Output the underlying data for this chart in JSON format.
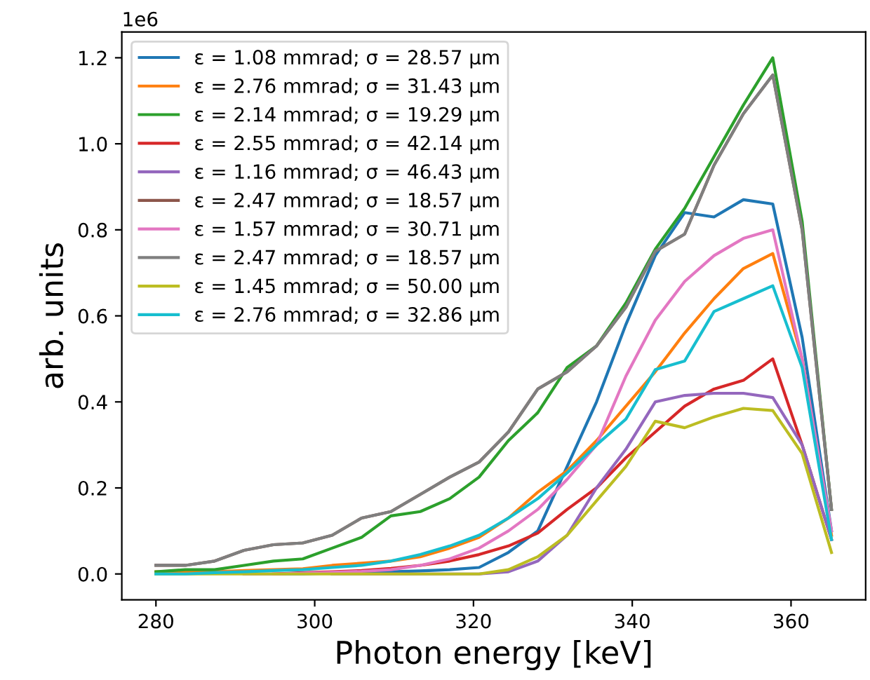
{
  "chart_data": {
    "type": "line",
    "xlabel": "Photon energy [keV]",
    "ylabel": "arb. units",
    "annotations": [
      "1e6"
    ],
    "x": [
      280,
      283.7,
      287.4,
      291.1,
      294.8,
      298.5,
      302.2,
      305.9,
      309.6,
      313.3,
      317,
      320.7,
      324.4,
      328.1,
      331.8,
      335.5,
      339.2,
      342.9,
      346.6,
      350.3,
      354,
      357.7,
      361.4,
      365.1
    ],
    "series": [
      {
        "name": "ε = 1.08 mmrad; σ = 28.57 μm",
        "color": "#1f77b4",
        "values": [
          null,
          null,
          null,
          0,
          0,
          0,
          0.002,
          0.003,
          0.005,
          0.007,
          0.01,
          0.015,
          0.05,
          0.1,
          0.25,
          0.4,
          0.58,
          0.74,
          0.84,
          0.83,
          0.87,
          0.86,
          0.55,
          0.1
        ]
      },
      {
        "name": "ε = 2.76 mmrad; σ = 31.43 μm",
        "color": "#ff7f0e",
        "values": [
          0.005,
          0.005,
          0.005,
          0.008,
          0.01,
          0.012,
          0.02,
          0.025,
          0.03,
          0.04,
          0.06,
          0.085,
          0.13,
          0.19,
          0.24,
          0.31,
          0.39,
          0.47,
          0.56,
          0.64,
          0.71,
          0.745,
          0.5,
          0.09
        ]
      },
      {
        "name": "ε = 2.14 mmrad; σ = 19.29 μm",
        "color": "#2ca02c",
        "values": [
          0.005,
          0.01,
          0.01,
          0.02,
          0.03,
          0.035,
          0.06,
          0.085,
          0.135,
          0.145,
          0.175,
          0.225,
          0.31,
          0.375,
          0.48,
          0.53,
          0.63,
          0.755,
          0.85,
          0.97,
          1.09,
          1.2,
          0.82,
          0.15
        ]
      },
      {
        "name": "ε = 2.55 mmrad; σ = 42.14 μm",
        "color": "#d62728",
        "values": [
          null,
          null,
          null,
          null,
          0,
          0.003,
          0.005,
          0.008,
          0.013,
          0.02,
          0.03,
          0.045,
          0.065,
          0.095,
          0.15,
          0.2,
          0.27,
          0.33,
          0.39,
          0.43,
          0.45,
          0.5,
          0.3,
          0.08
        ]
      },
      {
        "name": "ε = 1.16 mmrad; σ = 46.43 μm",
        "color": "#9467bd",
        "values": [
          null,
          null,
          null,
          null,
          null,
          null,
          0,
          0,
          0,
          0,
          0,
          0,
          0.005,
          0.03,
          0.09,
          0.2,
          0.29,
          0.4,
          0.415,
          0.42,
          0.42,
          0.41,
          0.3,
          0.08
        ]
      },
      {
        "name": "ε = 2.47 mmrad; σ = 18.57 μm",
        "color": "#8c564b",
        "values": [
          0.02,
          0.02,
          0.03,
          0.055,
          0.068,
          0.072,
          0.09,
          0.13,
          0.145,
          0.185,
          0.225,
          0.26,
          0.33,
          0.43,
          0.47,
          0.53,
          0.62,
          0.75,
          0.79,
          0.95,
          1.07,
          1.16,
          0.8,
          0.15
        ]
      },
      {
        "name": "ε = 1.57 mmrad; σ = 30.71 μm",
        "color": "#e377c2",
        "values": [
          null,
          null,
          null,
          0,
          0,
          0.002,
          0.004,
          0.006,
          0.01,
          0.02,
          0.035,
          0.06,
          0.1,
          0.15,
          0.22,
          0.3,
          0.46,
          0.59,
          0.68,
          0.74,
          0.78,
          0.8,
          0.5,
          0.1
        ]
      },
      {
        "name": "ε = 2.47 mmrad; σ = 18.57 μm",
        "color": "#7f7f7f",
        "values": [
          0.02,
          0.02,
          0.03,
          0.055,
          0.068,
          0.072,
          0.09,
          0.13,
          0.145,
          0.185,
          0.225,
          0.26,
          0.33,
          0.43,
          0.47,
          0.53,
          0.62,
          0.75,
          0.79,
          0.95,
          1.07,
          1.16,
          0.8,
          0.15
        ]
      },
      {
        "name": "ε = 1.45 mmrad; σ = 50.00 μm",
        "color": "#bcbd22",
        "values": [
          0,
          0,
          0,
          0,
          0,
          0,
          0,
          0,
          0,
          0,
          0,
          0,
          0.01,
          0.04,
          0.09,
          0.17,
          0.25,
          0.355,
          0.34,
          0.365,
          0.385,
          0.38,
          0.28,
          0.05
        ]
      },
      {
        "name": "ε = 2.76 mmrad; σ = 32.86 μm",
        "color": "#17becf",
        "values": [
          0,
          0,
          0.003,
          0.005,
          0.008,
          0.01,
          0.015,
          0.02,
          0.03,
          0.045,
          0.065,
          0.09,
          0.13,
          0.175,
          0.235,
          0.3,
          0.36,
          0.475,
          0.495,
          0.61,
          0.64,
          0.67,
          0.48,
          0.08
        ]
      }
    ],
    "xlim": [
      275.7,
      369.4
    ],
    "xticks": [
      280,
      300,
      320,
      340,
      360
    ],
    "ylim": [
      -0.06,
      1.26
    ],
    "yticks": [
      {
        "value": 0,
        "label": "0.0"
      },
      {
        "value": 0.2,
        "label": "0.2"
      },
      {
        "value": 0.4,
        "label": "0.4"
      },
      {
        "value": 0.6,
        "label": "0.6"
      },
      {
        "value": 0.8,
        "label": "0.8"
      },
      {
        "value": 1.0,
        "label": "1.0"
      },
      {
        "value": 1.2,
        "label": "1.2"
      }
    ],
    "grid": false,
    "legend": "top left",
    "marker": "none",
    "line_style": "solid"
  }
}
